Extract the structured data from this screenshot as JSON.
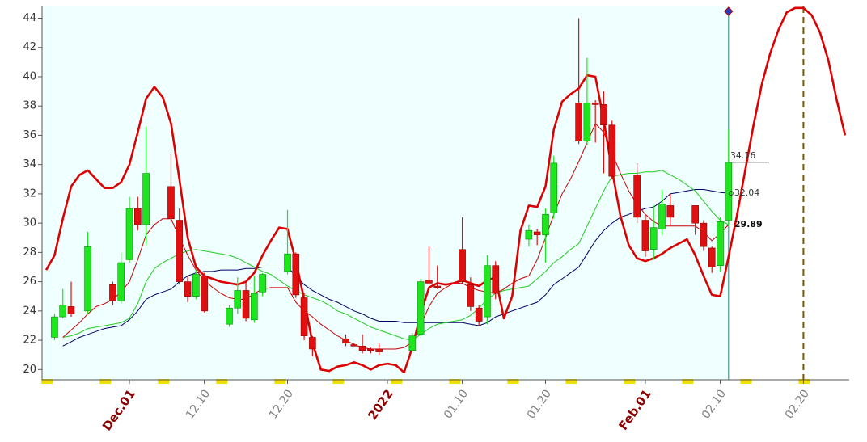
{
  "chart_data": {
    "type": "candlestick",
    "categories": [
      null,
      null,
      null,
      null,
      null,
      null,
      null,
      null,
      null,
      null,
      "Dec.01",
      null,
      null,
      null,
      null,
      null,
      null,
      null,
      null,
      "12.10",
      null,
      null,
      null,
      null,
      null,
      null,
      null,
      null,
      null,
      "12.20",
      null,
      null,
      null,
      null,
      null,
      null,
      null,
      null,
      null,
      null,
      null,
      "2022",
      null,
      null,
      null,
      null,
      null,
      null,
      null,
      null,
      "01.10",
      null,
      null,
      null,
      null,
      null,
      null,
      null,
      null,
      null,
      "01.20",
      null,
      null,
      null,
      null,
      null,
      null,
      null,
      null,
      null,
      null,
      null,
      "Feb.01",
      null,
      null,
      null,
      null,
      null,
      null,
      null,
      null,
      "02.10",
      null,
      null,
      null,
      null,
      null,
      null,
      null,
      null,
      null,
      "02.20",
      null,
      null,
      null,
      null,
      null
    ],
    "open": [
      null,
      22.2,
      23.6,
      24.3,
      null,
      24,
      null,
      null,
      25.8,
      24.7,
      27.5,
      31,
      29.9,
      null,
      null,
      32.5,
      30.2,
      26,
      25,
      26.4,
      null,
      null,
      23.1,
      24.2,
      25.4,
      23.4,
      25.3,
      null,
      null,
      26.7,
      27.9,
      24.9,
      22.2,
      null,
      null,
      null,
      22.1,
      21.7,
      21.6,
      21.4,
      21.4,
      null,
      null,
      null,
      21.3,
      22.4,
      26.1,
      25.7,
      null,
      null,
      28.2,
      25.8,
      24.2,
      23.6,
      27.1,
      null,
      null,
      null,
      28.9,
      29.4,
      29.2,
      30.7,
      null,
      null,
      38.2,
      35.6,
      38.2,
      38.1,
      36.7,
      null,
      null,
      33.3,
      30.2,
      28.2,
      29.6,
      31.2,
      null,
      null,
      31.2,
      30,
      28.3,
      27.1,
      30.2,
      null,
      null,
      null,
      null,
      null,
      null,
      null,
      null,
      null,
      null,
      null,
      null,
      null,
      null
    ],
    "high": [
      null,
      23.8,
      25.5,
      26,
      null,
      29.4,
      null,
      null,
      26,
      28,
      31.8,
      31.8,
      36.6,
      null,
      null,
      34.7,
      31,
      26.4,
      26.8,
      26.6,
      null,
      null,
      24.4,
      26.3,
      26,
      26.4,
      26.6,
      null,
      null,
      30.9,
      28,
      25.2,
      22.3,
      null,
      null,
      null,
      22.4,
      21.8,
      22.4,
      21.5,
      21.8,
      null,
      null,
      null,
      22.5,
      26.2,
      28.4,
      27.1,
      null,
      null,
      30.4,
      26.3,
      24.4,
      27.8,
      27.4,
      null,
      null,
      null,
      29.9,
      29.6,
      31,
      34.6,
      null,
      null,
      44,
      41.3,
      38.4,
      39,
      37,
      null,
      null,
      34.1,
      30.6,
      31.2,
      32.3,
      32,
      null,
      null,
      31.2,
      30.2,
      28.4,
      30.4,
      36.4,
      null,
      null,
      null,
      null,
      null,
      null,
      null,
      null,
      null,
      null,
      null,
      null,
      null,
      null
    ],
    "low": [
      null,
      22,
      23.5,
      23.6,
      null,
      23.8,
      null,
      null,
      24.4,
      24.5,
      27.3,
      29.5,
      28.5,
      null,
      null,
      30,
      25.8,
      24.6,
      24.8,
      23.9,
      null,
      null,
      22.9,
      23.8,
      23.3,
      23.2,
      25,
      null,
      null,
      26.5,
      24.9,
      22,
      20.9,
      null,
      null,
      null,
      21.6,
      21.6,
      21.1,
      21.1,
      21,
      null,
      null,
      null,
      21.2,
      22.3,
      25.8,
      25.5,
      null,
      null,
      25.9,
      24,
      23,
      23.1,
      24.8,
      null,
      null,
      null,
      28.4,
      28.5,
      27.3,
      30.3,
      null,
      null,
      35.4,
      35.3,
      35.5,
      33.4,
      33,
      null,
      null,
      30,
      27.7,
      27.5,
      29.2,
      29.8,
      null,
      null,
      29.2,
      28.1,
      26.6,
      26.7,
      29.8,
      null,
      null,
      null,
      null,
      null,
      null,
      null,
      null,
      null,
      null,
      null,
      null,
      null,
      null
    ],
    "close": [
      null,
      23.6,
      24.4,
      23.8,
      null,
      28.4,
      null,
      null,
      24.7,
      27.3,
      31,
      29.9,
      33.4,
      null,
      null,
      30.3,
      26,
      25,
      26.5,
      24,
      null,
      null,
      24.2,
      25.4,
      23.5,
      25.2,
      26.5,
      null,
      null,
      27.9,
      25.1,
      22.3,
      21.4,
      null,
      null,
      null,
      21.8,
      21.6,
      21.3,
      21.3,
      21.2,
      null,
      null,
      null,
      22.3,
      26,
      25.9,
      25.6,
      null,
      null,
      26,
      24.3,
      23.3,
      27.1,
      25.2,
      null,
      null,
      null,
      29.5,
      29.2,
      30.6,
      34.1,
      null,
      null,
      35.6,
      38.2,
      38.1,
      36.7,
      33.2,
      null,
      null,
      30.4,
      28.1,
      29.7,
      31.3,
      30.4,
      null,
      null,
      30,
      28.4,
      27,
      30.1,
      34.16,
      null,
      null,
      null,
      null,
      null,
      null,
      null,
      null,
      null,
      null,
      null,
      null,
      null,
      null
    ],
    "up_color": "#1ee61e",
    "down_color": "#e01010",
    "series": [
      {
        "color": "#000066",
        "width": 1,
        "values": [
          null,
          null,
          21.6,
          21.9,
          22.2,
          22.4,
          22.6,
          22.8,
          22.9,
          23,
          23.4,
          24,
          24.8,
          25.1,
          25.3,
          25.5,
          26,
          26.4,
          26.6,
          26.7,
          26.7,
          26.8,
          26.8,
          26.8,
          26.9,
          26.9,
          27,
          27,
          27,
          27,
          26.4,
          25.8,
          25.4,
          25.1,
          24.8,
          24.6,
          24.3,
          24,
          23.8,
          23.5,
          23.3,
          23.3,
          23.3,
          23.2,
          23.2,
          23.2,
          23.2,
          23.2,
          23.2,
          23.2,
          23.2,
          23.1,
          23,
          23.2,
          23.6,
          23.8,
          24,
          24.2,
          24.4,
          24.6,
          25.1,
          25.8,
          26.2,
          26.6,
          27,
          27.9,
          28.8,
          29.5,
          30,
          30.4,
          30.6,
          30.8,
          31,
          31.1,
          31.5,
          32,
          32.1,
          32.2,
          32.3,
          32.3,
          32.2,
          32.1,
          32.04,
          null,
          null,
          null,
          null,
          null,
          null,
          null,
          null,
          null,
          null,
          null,
          null,
          null,
          null
        ]
      },
      {
        "color": "#22cc22",
        "width": 1,
        "values": [
          null,
          null,
          22.2,
          22.3,
          22.5,
          22.8,
          22.9,
          23,
          23.1,
          23.2,
          23.5,
          24.5,
          26,
          26.9,
          27.3,
          27.6,
          27.9,
          28.1,
          28.2,
          28.1,
          28,
          27.9,
          27.8,
          27.6,
          27.3,
          27,
          26.7,
          26.5,
          26.1,
          25.7,
          25.4,
          25.1,
          24.9,
          24.7,
          24.4,
          24,
          23.8,
          23.5,
          23.2,
          22.9,
          22.7,
          22.5,
          22.3,
          22.1,
          22,
          22.4,
          22.8,
          23.1,
          23.2,
          23.3,
          23.4,
          23.7,
          24.2,
          24.8,
          25.2,
          25.4,
          25.5,
          25.6,
          25.7,
          26.2,
          26.7,
          27.3,
          27.7,
          28.2,
          28.6,
          29.8,
          31,
          32.2,
          33.2,
          33.3,
          33.4,
          33.4,
          33.5,
          33.5,
          33.6,
          33.3,
          33,
          32.6,
          32.2,
          31.5,
          30.8,
          30.2,
          29.89,
          null,
          null,
          null,
          null,
          null,
          null,
          null,
          null,
          null,
          null,
          null,
          null,
          null,
          null
        ]
      },
      {
        "color": "#cc0000",
        "width": 1,
        "values": [
          null,
          null,
          22.2,
          22.7,
          23.2,
          23.8,
          24.3,
          24.5,
          24.8,
          25.3,
          26,
          27.5,
          29.2,
          29.9,
          30.3,
          30.3,
          29,
          27.8,
          26.8,
          26.1,
          25.6,
          25.2,
          24.9,
          24.8,
          24.8,
          25.2,
          25.5,
          25.6,
          25.6,
          25.6,
          24.6,
          24,
          23.6,
          23.1,
          22.7,
          22.3,
          22,
          21.7,
          21.5,
          21.4,
          21.4,
          21.4,
          21.4,
          21.5,
          21.9,
          23,
          24.3,
          25.2,
          25.6,
          25.9,
          25.9,
          25.6,
          25.4,
          25.3,
          25.2,
          25.5,
          25.9,
          26.2,
          26.4,
          27.5,
          29,
          30.6,
          32,
          33,
          34.2,
          35.5,
          36.8,
          36.2,
          34.8,
          33.4,
          32.2,
          31.3,
          30.6,
          30.1,
          29.8,
          29.8,
          29.8,
          29.8,
          29.8,
          29.4,
          28.8,
          29.3,
          29.89,
          null,
          null,
          null,
          null,
          null,
          null,
          null,
          null,
          null,
          null,
          null,
          null,
          null,
          null
        ]
      },
      {
        "color": "#dd0000",
        "width": 2.6,
        "values": [
          26.8,
          27.8,
          30.3,
          32.5,
          33.3,
          33.6,
          33,
          32.4,
          32.4,
          32.8,
          34,
          36.2,
          38.5,
          39.3,
          38.6,
          36.8,
          33,
          29,
          27,
          26.4,
          26.2,
          26,
          25.9,
          25.8,
          26,
          26.6,
          27.8,
          28.8,
          29.7,
          29.6,
          27.4,
          24.8,
          21.8,
          20,
          19.9,
          20.2,
          20.3,
          20.5,
          20.3,
          20,
          20.3,
          20.4,
          20.3,
          19.8,
          21.5,
          23.8,
          25.6,
          25.9,
          25.8,
          25.9,
          26.1,
          25.9,
          25.7,
          26.1,
          26.3,
          23.5,
          25,
          29.5,
          31.2,
          31.1,
          32.5,
          36.4,
          38.3,
          38.8,
          39.2,
          40.1,
          40,
          37,
          33.6,
          30.5,
          28.5,
          27.6,
          27.4,
          27.6,
          27.9,
          28.3,
          28.6,
          28.9,
          27.8,
          26.4,
          25.1,
          25,
          27.7,
          30.5,
          33.6,
          36.7,
          39.5,
          41.6,
          43.2,
          44.4,
          44.7,
          44.7,
          44.2,
          43,
          41.1,
          38.4,
          36
        ]
      }
    ],
    "ylim": [
      19.3,
      44.8
    ],
    "yticks": [
      20,
      22,
      24,
      26,
      28,
      30,
      32,
      34,
      36,
      38,
      40,
      42,
      44
    ],
    "background": "#f0ffff",
    "major_label_color": "#8b0000",
    "minor_label_color": "#808080"
  }
}
